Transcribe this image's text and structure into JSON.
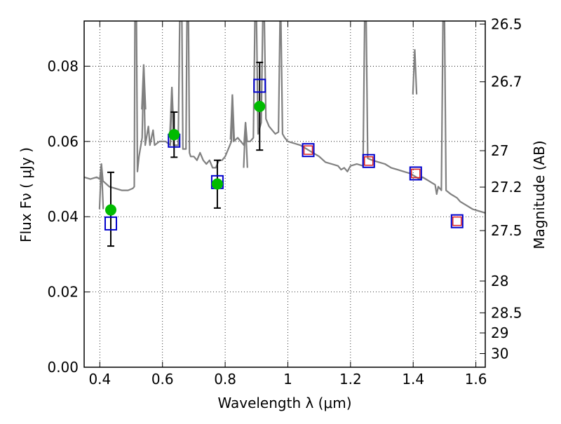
{
  "chart_data": {
    "type": "scatter",
    "title": "",
    "xlabel": "Wavelength  λ (μm)",
    "ylabel": "Flux  Fν  ( μJy )",
    "y2label": "Magnitude (AB)",
    "xlim": [
      0.35,
      1.63
    ],
    "ylim": [
      0.0,
      0.092
    ],
    "grid": true,
    "x_ticks": [
      0.4,
      0.6,
      0.8,
      1.0,
      1.2,
      1.4,
      1.6
    ],
    "x_tick_labels": [
      "0.4",
      "0.6",
      "0.8",
      "1",
      "1.2",
      "1.4",
      "1.6"
    ],
    "y_ticks": [
      0.0,
      0.02,
      0.04,
      0.06,
      0.08
    ],
    "y_tick_labels": [
      "0.00",
      "0.02",
      "0.04",
      "0.06",
      "0.08"
    ],
    "mag_ticks": [
      {
        "mag": 26.5,
        "label": "26.5"
      },
      {
        "mag": 26.7,
        "label": "26.7"
      },
      {
        "mag": 27.0,
        "label": "27"
      },
      {
        "mag": 27.2,
        "label": "27.2"
      },
      {
        "mag": 27.5,
        "label": "27.5"
      },
      {
        "mag": 28.0,
        "label": "28"
      },
      {
        "mag": 28.5,
        "label": "28.5"
      },
      {
        "mag": 29.0,
        "label": "29"
      },
      {
        "mag": 30.0,
        "label": "30"
      }
    ],
    "colors": {
      "spectrum": "#808080",
      "observed": "#00bb00",
      "model_blue": "#0000cc",
      "model_red": "#dd2222",
      "errorbar": "#000000"
    },
    "series": [
      {
        "kind": "spectrum",
        "points": [
          [
            0.35,
            0.0505
          ],
          [
            0.37,
            0.05
          ],
          [
            0.39,
            0.0505
          ],
          [
            0.4,
            0.05
          ],
          [
            0.405,
            0.054
          ],
          [
            0.41,
            0.0495
          ],
          [
            0.43,
            0.048
          ],
          [
            0.45,
            0.0475
          ],
          [
            0.47,
            0.047
          ],
          [
            0.49,
            0.047
          ],
          [
            0.505,
            0.0475
          ],
          [
            0.51,
            0.048
          ],
          [
            0.512,
            0.092
          ],
          [
            0.517,
            0.092
          ],
          [
            0.52,
            0.052
          ],
          [
            0.525,
            0.056
          ],
          [
            0.535,
            0.061
          ],
          [
            0.54,
            0.08
          ],
          [
            0.545,
            0.059
          ],
          [
            0.555,
            0.064
          ],
          [
            0.56,
            0.059
          ],
          [
            0.57,
            0.063
          ],
          [
            0.575,
            0.059
          ],
          [
            0.59,
            0.06
          ],
          [
            0.61,
            0.06
          ],
          [
            0.625,
            0.059
          ],
          [
            0.63,
            0.074
          ],
          [
            0.635,
            0.059
          ],
          [
            0.65,
            0.059
          ],
          [
            0.655,
            0.092
          ],
          [
            0.662,
            0.092
          ],
          [
            0.665,
            0.058
          ],
          [
            0.675,
            0.058
          ],
          [
            0.678,
            0.092
          ],
          [
            0.683,
            0.092
          ],
          [
            0.686,
            0.057
          ],
          [
            0.69,
            0.056
          ],
          [
            0.7,
            0.056
          ],
          [
            0.71,
            0.055
          ],
          [
            0.72,
            0.057
          ],
          [
            0.73,
            0.055
          ],
          [
            0.74,
            0.054
          ],
          [
            0.75,
            0.055
          ],
          [
            0.76,
            0.053
          ],
          [
            0.77,
            0.053
          ],
          [
            0.78,
            0.055
          ],
          [
            0.79,
            0.055
          ],
          [
            0.8,
            0.056
          ],
          [
            0.81,
            0.058
          ],
          [
            0.82,
            0.06
          ],
          [
            0.823,
            0.072
          ],
          [
            0.827,
            0.06
          ],
          [
            0.84,
            0.061
          ],
          [
            0.85,
            0.06
          ],
          [
            0.86,
            0.059
          ],
          [
            0.865,
            0.065
          ],
          [
            0.87,
            0.06
          ],
          [
            0.88,
            0.06
          ],
          [
            0.89,
            0.061
          ],
          [
            0.895,
            0.092
          ],
          [
            0.9,
            0.092
          ],
          [
            0.905,
            0.062
          ],
          [
            0.915,
            0.065
          ],
          [
            0.92,
            0.092
          ],
          [
            0.925,
            0.092
          ],
          [
            0.93,
            0.066
          ],
          [
            0.94,
            0.064
          ],
          [
            0.95,
            0.063
          ],
          [
            0.96,
            0.062
          ],
          [
            0.97,
            0.0625
          ],
          [
            0.975,
            0.092
          ],
          [
            0.978,
            0.092
          ],
          [
            0.983,
            0.062
          ],
          [
            0.99,
            0.061
          ],
          [
            1.0,
            0.06
          ],
          [
            1.02,
            0.0595
          ],
          [
            1.04,
            0.059
          ],
          [
            1.06,
            0.058
          ],
          [
            1.08,
            0.057
          ],
          [
            1.1,
            0.056
          ],
          [
            1.12,
            0.0545
          ],
          [
            1.14,
            0.054
          ],
          [
            1.16,
            0.0535
          ],
          [
            1.17,
            0.0525
          ],
          [
            1.18,
            0.053
          ],
          [
            1.19,
            0.052
          ],
          [
            1.2,
            0.0535
          ],
          [
            1.22,
            0.054
          ],
          [
            1.24,
            0.0535
          ],
          [
            1.245,
            0.092
          ],
          [
            1.25,
            0.092
          ],
          [
            1.255,
            0.0555
          ],
          [
            1.27,
            0.055
          ],
          [
            1.29,
            0.0545
          ],
          [
            1.31,
            0.054
          ],
          [
            1.33,
            0.053
          ],
          [
            1.35,
            0.0525
          ],
          [
            1.37,
            0.052
          ],
          [
            1.39,
            0.0515
          ],
          [
            1.41,
            0.0505
          ],
          [
            1.42,
            0.05
          ],
          [
            1.43,
            0.0505
          ],
          [
            1.44,
            0.05
          ],
          [
            1.45,
            0.0495
          ],
          [
            1.46,
            0.049
          ],
          [
            1.47,
            0.0485
          ],
          [
            1.475,
            0.046
          ],
          [
            1.48,
            0.048
          ],
          [
            1.49,
            0.047
          ],
          [
            1.495,
            0.092
          ],
          [
            1.5,
            0.092
          ],
          [
            1.505,
            0.047
          ],
          [
            1.52,
            0.046
          ],
          [
            1.53,
            0.0455
          ],
          [
            1.54,
            0.045
          ],
          [
            1.55,
            0.044
          ],
          [
            1.57,
            0.043
          ],
          [
            1.59,
            0.042
          ],
          [
            1.61,
            0.0415
          ],
          [
            1.63,
            0.041
          ]
        ],
        "peaks": [
          [
            0.405,
            0.054
          ],
          [
            0.54,
            0.0805
          ],
          [
            0.63,
            0.0745
          ],
          [
            0.823,
            0.0725
          ],
          [
            0.865,
            0.065
          ],
          [
            1.405,
            0.0845
          ]
        ]
      },
      {
        "kind": "observed_with_errors",
        "points": [
          {
            "x": 0.435,
            "y": 0.0418,
            "yerr": [
              0.0322,
              0.0518
            ]
          },
          {
            "x": 0.637,
            "y": 0.0618,
            "yerr": [
              0.0558,
              0.0678
            ]
          },
          {
            "x": 0.775,
            "y": 0.0487,
            "yerr": [
              0.0423,
              0.055
            ]
          },
          {
            "x": 0.91,
            "y": 0.0693,
            "yerr": [
              0.0577,
              0.081
            ]
          }
        ]
      },
      {
        "kind": "model_blue_squares",
        "points": [
          [
            0.435,
            0.0382
          ],
          [
            0.637,
            0.0602
          ],
          [
            0.775,
            0.0492
          ],
          [
            0.91,
            0.0748
          ],
          [
            1.065,
            0.0577
          ],
          [
            1.258,
            0.0548
          ],
          [
            1.408,
            0.0515
          ],
          [
            1.54,
            0.0388
          ]
        ]
      },
      {
        "kind": "model_red_squares",
        "points": [
          [
            1.065,
            0.0577
          ],
          [
            1.258,
            0.0548
          ],
          [
            1.408,
            0.0515
          ],
          [
            1.54,
            0.0388
          ]
        ]
      }
    ]
  }
}
